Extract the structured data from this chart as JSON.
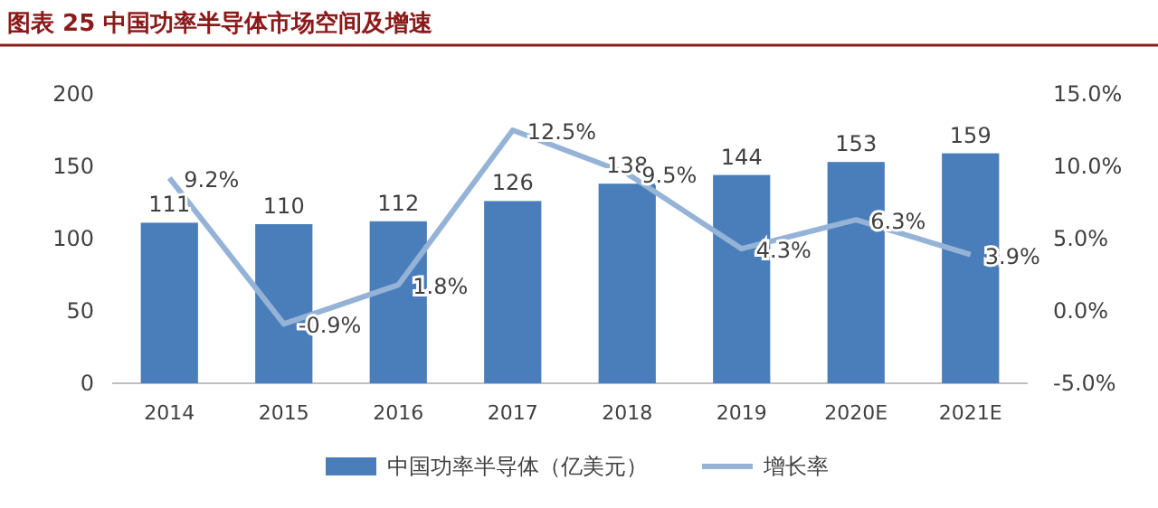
{
  "chart_data": {
    "type": "bar",
    "title": "图表 25  中国功率半导体市场空间及增速",
    "categories": [
      "2014",
      "2015",
      "2016",
      "2017",
      "2018",
      "2019",
      "2020E",
      "2021E"
    ],
    "series": [
      {
        "name": "中国功率半导体（亿美元）",
        "color": "#4a7ebb",
        "values": [
          111,
          110,
          112,
          126,
          138,
          144,
          153,
          159
        ]
      },
      {
        "name": "增长率",
        "type": "line",
        "axis": "y2",
        "color": "#95b3d7",
        "values": [
          9.2,
          -0.9,
          1.8,
          12.5,
          9.5,
          4.3,
          6.3,
          3.9
        ],
        "value_labels": [
          "9.2%",
          "-0.9%",
          "1.8%",
          "12.5%",
          "9.5%",
          "4.3%",
          "6.3%",
          "3.9%"
        ]
      }
    ],
    "ylim": [
      0,
      200
    ],
    "yticks": [
      0,
      50,
      100,
      150,
      200
    ],
    "y2lim": [
      -5,
      15
    ],
    "y2ticks": [
      {
        "value": -5,
        "label": "-5.0%"
      },
      {
        "value": 0,
        "label": "0.0%"
      },
      {
        "value": 5,
        "label": "5.0%"
      },
      {
        "value": 10,
        "label": "10.0%"
      },
      {
        "value": 15,
        "label": "15.0%"
      }
    ],
    "data_labels": true,
    "legend": "bottom"
  }
}
